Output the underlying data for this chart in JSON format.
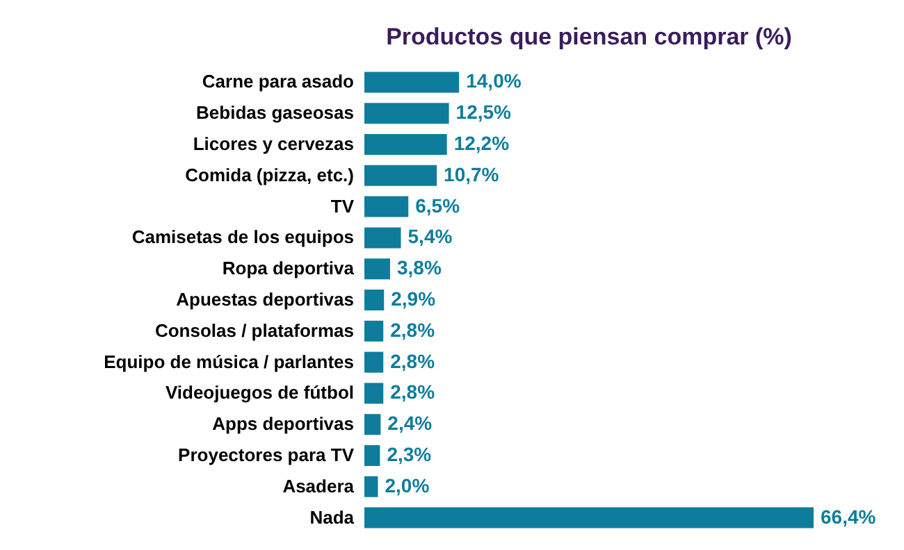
{
  "chart_data": {
    "type": "bar",
    "orientation": "horizontal",
    "title": "Productos que piensan comprar (%)",
    "categories": [
      "Carne para asado",
      "Bebidas gaseosas",
      "Licores y cervezas",
      "Comida (pizza, etc.)",
      "TV",
      "Camisetas de los equipos",
      "Ropa deportiva",
      "Apuestas deportivas",
      "Consolas / plataformas",
      "Equipo de música / parlantes",
      "Videojuegos de fútbol",
      "Apps deportivas",
      "Proyectores para TV",
      "Asadera",
      "Nada"
    ],
    "values": [
      14.0,
      12.5,
      12.2,
      10.7,
      6.5,
      5.4,
      3.8,
      2.9,
      2.8,
      2.8,
      2.8,
      2.4,
      2.3,
      2.0,
      66.4
    ],
    "value_labels": [
      "14,0%",
      "12,5%",
      "12,2%",
      "10,7%",
      "6,5%",
      "5,4%",
      "3,8%",
      "2,9%",
      "2,8%",
      "2,8%",
      "2,8%",
      "2,4%",
      "2,3%",
      "2,0%",
      "66,4%"
    ],
    "color": "#0e7d9c"
  }
}
